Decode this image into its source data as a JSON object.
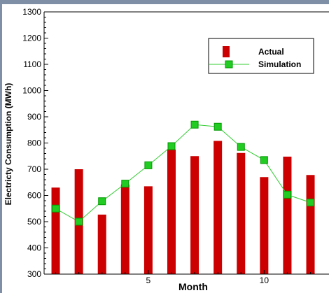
{
  "colors": {
    "frame": "#7f8fa6",
    "bar": "#cc0000",
    "line": "#33cc33",
    "marker": "#22cc22",
    "marker_edge": "#009900"
  },
  "chart_data": {
    "type": "bar",
    "title": "",
    "xlabel": "Month",
    "ylabel": "Electricty Consumption (MWh)",
    "xlim": [
      0.5,
      12.8
    ],
    "ylim": [
      300,
      1300
    ],
    "xticks": [
      5,
      10
    ],
    "yticks": [
      300,
      400,
      500,
      600,
      700,
      800,
      900,
      1000,
      1100,
      1200,
      1300
    ],
    "grid": false,
    "legend": "top-right",
    "x": [
      1,
      2,
      3,
      4,
      5,
      6,
      7,
      8,
      9,
      10,
      11,
      12
    ],
    "series": [
      {
        "name": "Actual",
        "kind": "bar",
        "values": [
          630,
          700,
          527,
          642,
          635,
          775,
          750,
          808,
          762,
          670,
          748,
          678
        ]
      },
      {
        "name": "Simulation",
        "kind": "line",
        "values": [
          550,
          500,
          578,
          645,
          715,
          788,
          870,
          862,
          785,
          735,
          603,
          573
        ]
      }
    ]
  }
}
